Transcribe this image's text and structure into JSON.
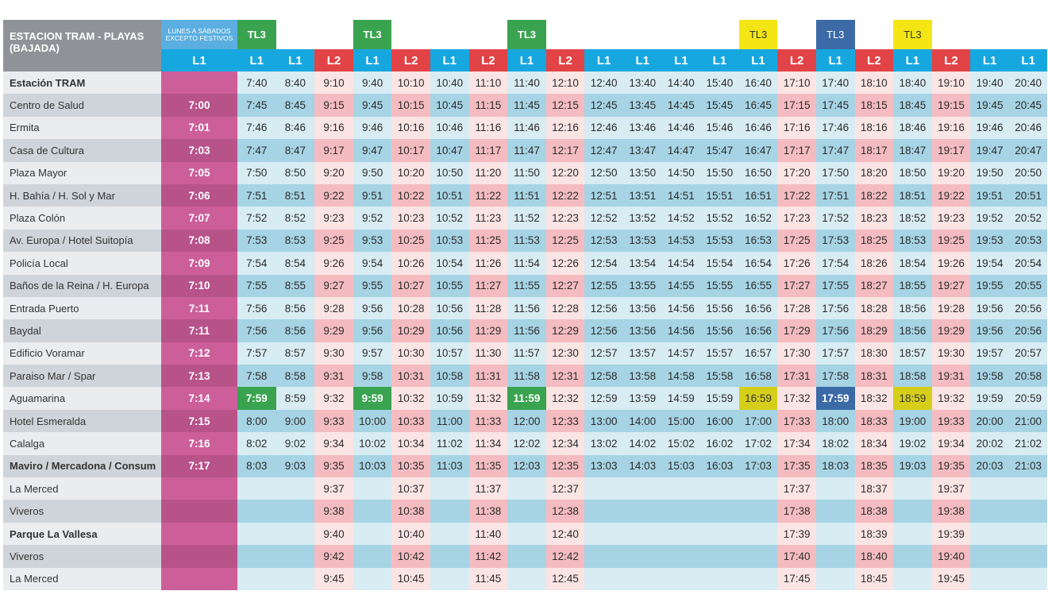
{
  "header": {
    "title_line1": "ESTACION TRAM - PLAYAS",
    "title_line2": "(BAJADA)",
    "service_note_line1": "LUNES A SÁBADOS",
    "service_note_line2": "EXCEPTO FESTIVOS"
  },
  "colors": {
    "L1": "#17a7df",
    "L2": "#e24346",
    "pink_column": "#cc5f9a",
    "TL3_green": "#3aa34f",
    "TL3_yellow": "#f4e614",
    "TL3_blue": "#3b6aa6",
    "header_gray": "#8f9398"
  },
  "first_column": {
    "line": "L1"
  },
  "columns": [
    {
      "line": "L1",
      "tl3": "TL3",
      "tl3_color": "green",
      "hl": 14
    },
    {
      "line": "L1",
      "tl3": "",
      "tl3_color": ""
    },
    {
      "line": "L2",
      "tl3": "",
      "tl3_color": ""
    },
    {
      "line": "L1",
      "tl3": "TL3",
      "tl3_color": "green",
      "hl": 14
    },
    {
      "line": "L2",
      "tl3": "",
      "tl3_color": ""
    },
    {
      "line": "L1",
      "tl3": "",
      "tl3_color": ""
    },
    {
      "line": "L2",
      "tl3": "",
      "tl3_color": ""
    },
    {
      "line": "L1",
      "tl3": "TL3",
      "tl3_color": "green",
      "hl": 14
    },
    {
      "line": "L2",
      "tl3": "",
      "tl3_color": ""
    },
    {
      "line": "L1",
      "tl3": "",
      "tl3_color": ""
    },
    {
      "line": "L1",
      "tl3": "",
      "tl3_color": ""
    },
    {
      "line": "L1",
      "tl3": "",
      "tl3_color": ""
    },
    {
      "line": "L1",
      "tl3": "",
      "tl3_color": ""
    },
    {
      "line": "L1",
      "tl3": "TL3",
      "tl3_color": "yellow",
      "hl": 14
    },
    {
      "line": "L2",
      "tl3": "",
      "tl3_color": ""
    },
    {
      "line": "L1",
      "tl3": "TL3",
      "tl3_color": "blue",
      "hl": 14
    },
    {
      "line": "L2",
      "tl3": "",
      "tl3_color": ""
    },
    {
      "line": "L1",
      "tl3": "TL3",
      "tl3_color": "yellow",
      "hl": 14
    },
    {
      "line": "L2",
      "tl3": "",
      "tl3_color": ""
    },
    {
      "line": "L1",
      "tl3": "",
      "tl3_color": ""
    },
    {
      "line": "L1",
      "tl3": "",
      "tl3_color": ""
    }
  ],
  "rows": [
    {
      "stop": "Estación TRAM",
      "bold": true,
      "first": "",
      "times": [
        "7:40",
        "8:40",
        "9:10",
        "9:40",
        "10:10",
        "10:40",
        "11:10",
        "11:40",
        "12:10",
        "12:40",
        "13:40",
        "14:40",
        "15:40",
        "16:40",
        "17:10",
        "17:40",
        "18:10",
        "18:40",
        "19:10",
        "19:40",
        "20:40"
      ]
    },
    {
      "stop": "Centro de Salud",
      "bold": false,
      "first": "7:00",
      "times": [
        "7:45",
        "8:45",
        "9:15",
        "9:45",
        "10:15",
        "10:45",
        "11:15",
        "11:45",
        "12:15",
        "12:45",
        "13:45",
        "14:45",
        "15:45",
        "16:45",
        "17:15",
        "17:45",
        "18:15",
        "18:45",
        "19:15",
        "19:45",
        "20:45"
      ]
    },
    {
      "stop": "Ermita",
      "bold": false,
      "first": "7:01",
      "times": [
        "7:46",
        "8:46",
        "9:16",
        "9:46",
        "10:16",
        "10:46",
        "11:16",
        "11:46",
        "12:16",
        "12:46",
        "13:46",
        "14:46",
        "15:46",
        "16:46",
        "17:16",
        "17:46",
        "18:16",
        "18:46",
        "19:16",
        "19:46",
        "20:46"
      ]
    },
    {
      "stop": "Casa de Cultura",
      "bold": false,
      "first": "7:03",
      "times": [
        "7:47",
        "8:47",
        "9:17",
        "9:47",
        "10:17",
        "10:47",
        "11:17",
        "11:47",
        "12:17",
        "12:47",
        "13:47",
        "14:47",
        "15:47",
        "16:47",
        "17:17",
        "17:47",
        "18:17",
        "18:47",
        "19:17",
        "19:47",
        "20:47"
      ]
    },
    {
      "stop": "Plaza Mayor",
      "bold": false,
      "first": "7:05",
      "times": [
        "7:50",
        "8:50",
        "9:20",
        "9:50",
        "10:20",
        "10:50",
        "11:20",
        "11:50",
        "12:20",
        "12:50",
        "13:50",
        "14:50",
        "15:50",
        "16:50",
        "17:20",
        "17:50",
        "18:20",
        "18:50",
        "19:20",
        "19:50",
        "20:50"
      ]
    },
    {
      "stop": "H. Bahía / H. Sol y Mar",
      "bold": false,
      "first": "7:06",
      "times": [
        "7:51",
        "8:51",
        "9:22",
        "9:51",
        "10:22",
        "10:51",
        "11:22",
        "11:51",
        "12:22",
        "12:51",
        "13:51",
        "14:51",
        "15:51",
        "16:51",
        "17:22",
        "17:51",
        "18:22",
        "18:51",
        "19:22",
        "19:51",
        "20:51"
      ]
    },
    {
      "stop": "Plaza Colón",
      "bold": false,
      "first": "7:07",
      "times": [
        "7:52",
        "8:52",
        "9:23",
        "9:52",
        "10:23",
        "10:52",
        "11:23",
        "11:52",
        "12:23",
        "12:52",
        "13:52",
        "14:52",
        "15:52",
        "16:52",
        "17:23",
        "17:52",
        "18:23",
        "18:52",
        "19:23",
        "19:52",
        "20:52"
      ]
    },
    {
      "stop": "Av. Europa / Hotel Suitopía",
      "bold": false,
      "first": "7:08",
      "times": [
        "7:53",
        "8:53",
        "9:25",
        "9:53",
        "10:25",
        "10:53",
        "11:25",
        "11:53",
        "12:25",
        "12:53",
        "13:53",
        "14:53",
        "15:53",
        "16:53",
        "17:25",
        "17:53",
        "18:25",
        "18:53",
        "19:25",
        "19:53",
        "20:53"
      ]
    },
    {
      "stop": "Policía Local",
      "bold": false,
      "first": "7:09",
      "times": [
        "7:54",
        "8:54",
        "9:26",
        "9:54",
        "10:26",
        "10:54",
        "11:26",
        "11:54",
        "12:26",
        "12:54",
        "13:54",
        "14:54",
        "15:54",
        "16:54",
        "17:26",
        "17:54",
        "18:26",
        "18:54",
        "19:26",
        "19:54",
        "20:54"
      ]
    },
    {
      "stop": "Baños de la Reina / H. Europa",
      "bold": false,
      "first": "7:10",
      "times": [
        "7:55",
        "8:55",
        "9:27",
        "9:55",
        "10:27",
        "10:55",
        "11:27",
        "11:55",
        "12:27",
        "12:55",
        "13:55",
        "14:55",
        "15:55",
        "16:55",
        "17:27",
        "17:55",
        "18:27",
        "18:55",
        "19:27",
        "19:55",
        "20:55"
      ]
    },
    {
      "stop": "Entrada Puerto",
      "bold": false,
      "first": "7:11",
      "times": [
        "7:56",
        "8:56",
        "9:28",
        "9:56",
        "10:28",
        "10:56",
        "11:28",
        "11:56",
        "12:28",
        "12:56",
        "13:56",
        "14:56",
        "15:56",
        "16:56",
        "17:28",
        "17:56",
        "18:28",
        "18:56",
        "19:28",
        "19:56",
        "20:56"
      ]
    },
    {
      "stop": "Baydal",
      "bold": false,
      "first": "7:11",
      "times": [
        "7:56",
        "8:56",
        "9:29",
        "9:56",
        "10:29",
        "10:56",
        "11:29",
        "11:56",
        "12:29",
        "12:56",
        "13:56",
        "14:56",
        "15:56",
        "16:56",
        "17:29",
        "17:56",
        "18:29",
        "18:56",
        "19:29",
        "19:56",
        "20:56"
      ]
    },
    {
      "stop": "Edificio Voramar",
      "bold": false,
      "first": "7:12",
      "times": [
        "7:57",
        "8:57",
        "9:30",
        "9:57",
        "10:30",
        "10:57",
        "11:30",
        "11:57",
        "12:30",
        "12:57",
        "13:57",
        "14:57",
        "15:57",
        "16:57",
        "17:30",
        "17:57",
        "18:30",
        "18:57",
        "19:30",
        "19:57",
        "20:57"
      ]
    },
    {
      "stop": "Paraiso Mar / Spar",
      "bold": false,
      "first": "7:13",
      "times": [
        "7:58",
        "8:58",
        "9:31",
        "9:58",
        "10:31",
        "10:58",
        "11:31",
        "11:58",
        "12:31",
        "12:58",
        "13:58",
        "14:58",
        "15:58",
        "16:58",
        "17:31",
        "17:58",
        "18:31",
        "18:58",
        "19:31",
        "19:58",
        "20:58"
      ]
    },
    {
      "stop": "Aguamarina",
      "bold": false,
      "first": "7:14",
      "times": [
        "7:59",
        "8:59",
        "9:32",
        "9:59",
        "10:32",
        "10:59",
        "11:32",
        "11:59",
        "12:32",
        "12:59",
        "13:59",
        "14:59",
        "15:59",
        "16:59",
        "17:32",
        "17:59",
        "18:32",
        "18:59",
        "19:32",
        "19:59",
        "20:59"
      ]
    },
    {
      "stop": "Hotel Esmeralda",
      "bold": false,
      "first": "7:15",
      "times": [
        "8:00",
        "9:00",
        "9:33",
        "10:00",
        "10:33",
        "11:00",
        "11:33",
        "12:00",
        "12:33",
        "13:00",
        "14:00",
        "15:00",
        "16:00",
        "17:00",
        "17:33",
        "18:00",
        "18:33",
        "19:00",
        "19:33",
        "20:00",
        "21:00"
      ]
    },
    {
      "stop": "Calalga",
      "bold": false,
      "first": "7:16",
      "times": [
        "8:02",
        "9:02",
        "9:34",
        "10:02",
        "10:34",
        "11:02",
        "11:34",
        "12:02",
        "12:34",
        "13:02",
        "14:02",
        "15:02",
        "16:02",
        "17:02",
        "17:34",
        "18:02",
        "18:34",
        "19:02",
        "19:34",
        "20:02",
        "21:02"
      ]
    },
    {
      "stop": "Maviro / Mercadona / Consum",
      "bold": true,
      "first": "7:17",
      "times": [
        "8:03",
        "9:03",
        "9:35",
        "10:03",
        "10:35",
        "11:03",
        "11:35",
        "12:03",
        "12:35",
        "13:03",
        "14:03",
        "15:03",
        "16:03",
        "17:03",
        "17:35",
        "18:03",
        "18:35",
        "19:03",
        "19:35",
        "20:03",
        "21:03"
      ]
    },
    {
      "stop": "La Merced",
      "bold": false,
      "first": "",
      "times": [
        "",
        "",
        "9:37",
        "",
        "10:37",
        "",
        "11:37",
        "",
        "12:37",
        "",
        "",
        "",
        "",
        "",
        "17:37",
        "",
        "18:37",
        "",
        "19:37",
        "",
        ""
      ]
    },
    {
      "stop": "Viveros",
      "bold": false,
      "first": "",
      "times": [
        "",
        "",
        "9:38",
        "",
        "10:38",
        "",
        "11:38",
        "",
        "12:38",
        "",
        "",
        "",
        "",
        "",
        "17:38",
        "",
        "18:38",
        "",
        "19:38",
        "",
        ""
      ]
    },
    {
      "stop": "Parque La Vallesa",
      "bold": true,
      "first": "",
      "times": [
        "",
        "",
        "9:40",
        "",
        "10:40",
        "",
        "11:40",
        "",
        "12:40",
        "",
        "",
        "",
        "",
        "",
        "17:39",
        "",
        "18:39",
        "",
        "19:39",
        "",
        ""
      ]
    },
    {
      "stop": "Viveros",
      "bold": false,
      "first": "",
      "times": [
        "",
        "",
        "9:42",
        "",
        "10:42",
        "",
        "11:42",
        "",
        "12:42",
        "",
        "",
        "",
        "",
        "",
        "17:40",
        "",
        "18:40",
        "",
        "19:40",
        "",
        ""
      ]
    },
    {
      "stop": "La Merced",
      "bold": false,
      "first": "",
      "times": [
        "",
        "",
        "9:45",
        "",
        "10:45",
        "",
        "11:45",
        "",
        "12:45",
        "",
        "",
        "",
        "",
        "",
        "17:45",
        "",
        "18:45",
        "",
        "19:45",
        "",
        ""
      ]
    }
  ]
}
